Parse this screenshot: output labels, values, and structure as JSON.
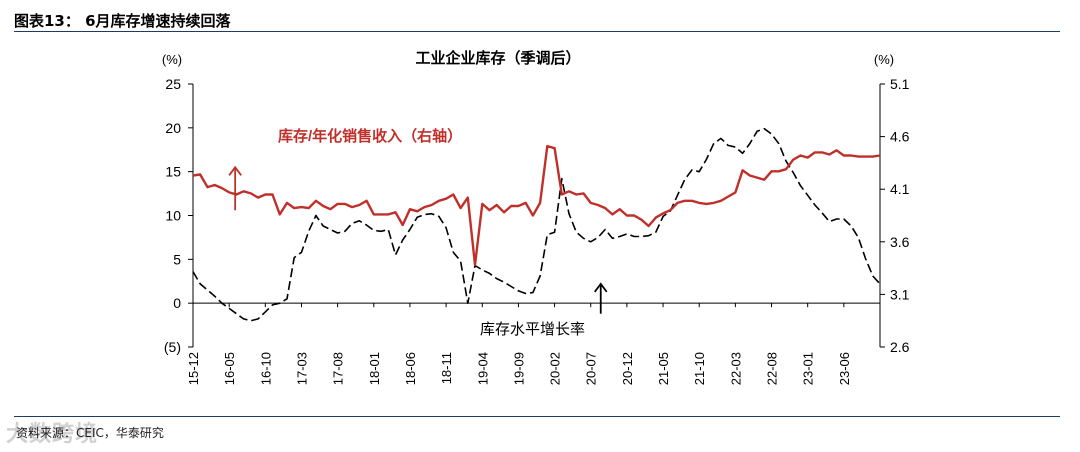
{
  "header": {
    "figure_title": "图表13： 6月库存增速持续回落"
  },
  "footer": {
    "source": "资料来源：CEIC，华泰研究",
    "watermark": "大数跨境"
  },
  "chart_data": {
    "type": "line",
    "title": "工业企业库存（季调后）",
    "left_unit": "(%)",
    "right_unit": "(%)",
    "left_ticks": [
      "25",
      "20",
      "15",
      "10",
      "5",
      "0",
      "(5)"
    ],
    "left_ylim": [
      -5,
      25
    ],
    "right_ticks": [
      "5.1",
      "4.6",
      "4.1",
      "3.6",
      "3.1",
      "2.6"
    ],
    "right_ylim": [
      2.6,
      5.1
    ],
    "x_tick_labels": [
      "15-12",
      "16-05",
      "16-10",
      "17-03",
      "17-08",
      "18-01",
      "18-06",
      "18-11",
      "19-04",
      "19-09",
      "20-02",
      "20-07",
      "20-12",
      "21-05",
      "21-10",
      "22-03",
      "22-08",
      "23-01",
      "23-06"
    ],
    "grid": false,
    "annotations": [
      {
        "text": "库存/年化销售收入（右轴）",
        "color": "#c0302b",
        "series": "ratio"
      },
      {
        "text": "库存水平增长率",
        "color": "#000000",
        "series": "growth"
      }
    ],
    "series": [
      {
        "name": "库存水平增长率",
        "axis": "left",
        "color": "#000000",
        "style": "dashed",
        "start": "2015-12",
        "values": [
          3.6,
          2.2,
          1.5,
          0.8,
          0,
          -0.6,
          -1.2,
          -1.8,
          -2,
          -1.8,
          -1,
          -0.2,
          0,
          0.5,
          5.2,
          5.8,
          8.2,
          10,
          8.8,
          8.4,
          8,
          8.2,
          9.1,
          9.4,
          8.9,
          8.3,
          8.2,
          8.4,
          5.5,
          7.2,
          8.4,
          9.8,
          10.1,
          10.2,
          9.9,
          8.6,
          5.8,
          4.8,
          0,
          4.3,
          3.8,
          3.4,
          2.8,
          2.4,
          1.9,
          1.4,
          1.1,
          1.2,
          3.1,
          7.8,
          8.1,
          14.2,
          10.2,
          8.1,
          7.4,
          7.0,
          7.5,
          8.4,
          7.4,
          7.6,
          7.9,
          7.6,
          7.6,
          7.7,
          8.1,
          9.9,
          10.5,
          12.3,
          14.1,
          15.2,
          15.0,
          16.4,
          18.2,
          18.8,
          18.0,
          17.8,
          17.1,
          18.2,
          19.6,
          19.9,
          19.3,
          18.2,
          16.2,
          14.9,
          13.4,
          12.3,
          11.2,
          10.3,
          9.3,
          9.6,
          9.6,
          8.8,
          7.5,
          5.1,
          3.1,
          2.2
        ]
      },
      {
        "name": "库存/年化销售收入",
        "axis": "right",
        "color": "#c0302b",
        "style": "solid",
        "start": "2015-12",
        "values": [
          4.23,
          4.24,
          4.12,
          4.14,
          4.11,
          4.07,
          4.05,
          4.08,
          4.06,
          4.02,
          4.05,
          4.05,
          3.86,
          3.97,
          3.92,
          3.93,
          3.92,
          3.99,
          3.94,
          3.91,
          3.96,
          3.96,
          3.93,
          3.95,
          3.99,
          3.86,
          3.86,
          3.86,
          3.88,
          3.76,
          3.91,
          3.89,
          3.93,
          3.95,
          3.99,
          4.01,
          4.05,
          3.92,
          4.02,
          3.38,
          3.96,
          3.9,
          3.95,
          3.88,
          3.94,
          3.94,
          3.97,
          3.85,
          3.97,
          4.51,
          4.49,
          4.05,
          4.08,
          4.05,
          4.06,
          3.97,
          3.95,
          3.92,
          3.86,
          3.91,
          3.85,
          3.85,
          3.81,
          3.75,
          3.83,
          3.87,
          3.9,
          3.97,
          3.99,
          3.99,
          3.97,
          3.96,
          3.97,
          3.99,
          4.03,
          4.07,
          4.28,
          4.23,
          4.21,
          4.19,
          4.27,
          4.27,
          4.29,
          4.38,
          4.42,
          4.4,
          4.45,
          4.45,
          4.43,
          4.47,
          4.42,
          4.42,
          4.41,
          4.41,
          4.41,
          4.42
        ]
      }
    ],
    "arrows": [
      {
        "target": "growth_axis",
        "direction": "up",
        "x_label": "20-07",
        "y_from": -1.2,
        "y_to": 2.2
      },
      {
        "target": "ratio_axis",
        "direction": "up",
        "x_label": "16-05",
        "y_from": 10.6,
        "y_to": 15.5
      }
    ]
  }
}
